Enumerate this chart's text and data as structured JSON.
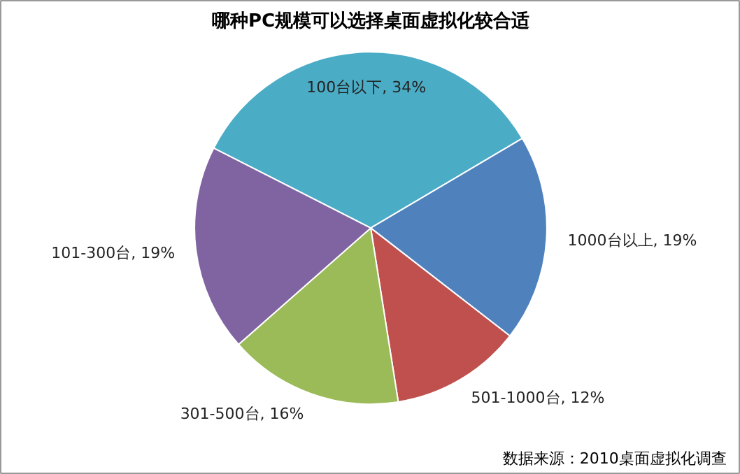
{
  "chart_data": {
    "type": "pie",
    "title": "哪种PC规模可以选择桌面虚拟化较合适",
    "categories": [
      "100台以下",
      "1000台以上",
      "501-1000台",
      "301-500台",
      "101-300台"
    ],
    "values": [
      34,
      19,
      12,
      16,
      19
    ],
    "value_labels": [
      "34%",
      "19%",
      "12%",
      "16%",
      "19%"
    ],
    "colors": [
      "#4bacc6",
      "#4f81bd",
      "#c0504d",
      "#9bbb59",
      "#8064a2"
    ],
    "annotations": [
      "数据来源：2010桌面虚拟化调查"
    ]
  }
}
